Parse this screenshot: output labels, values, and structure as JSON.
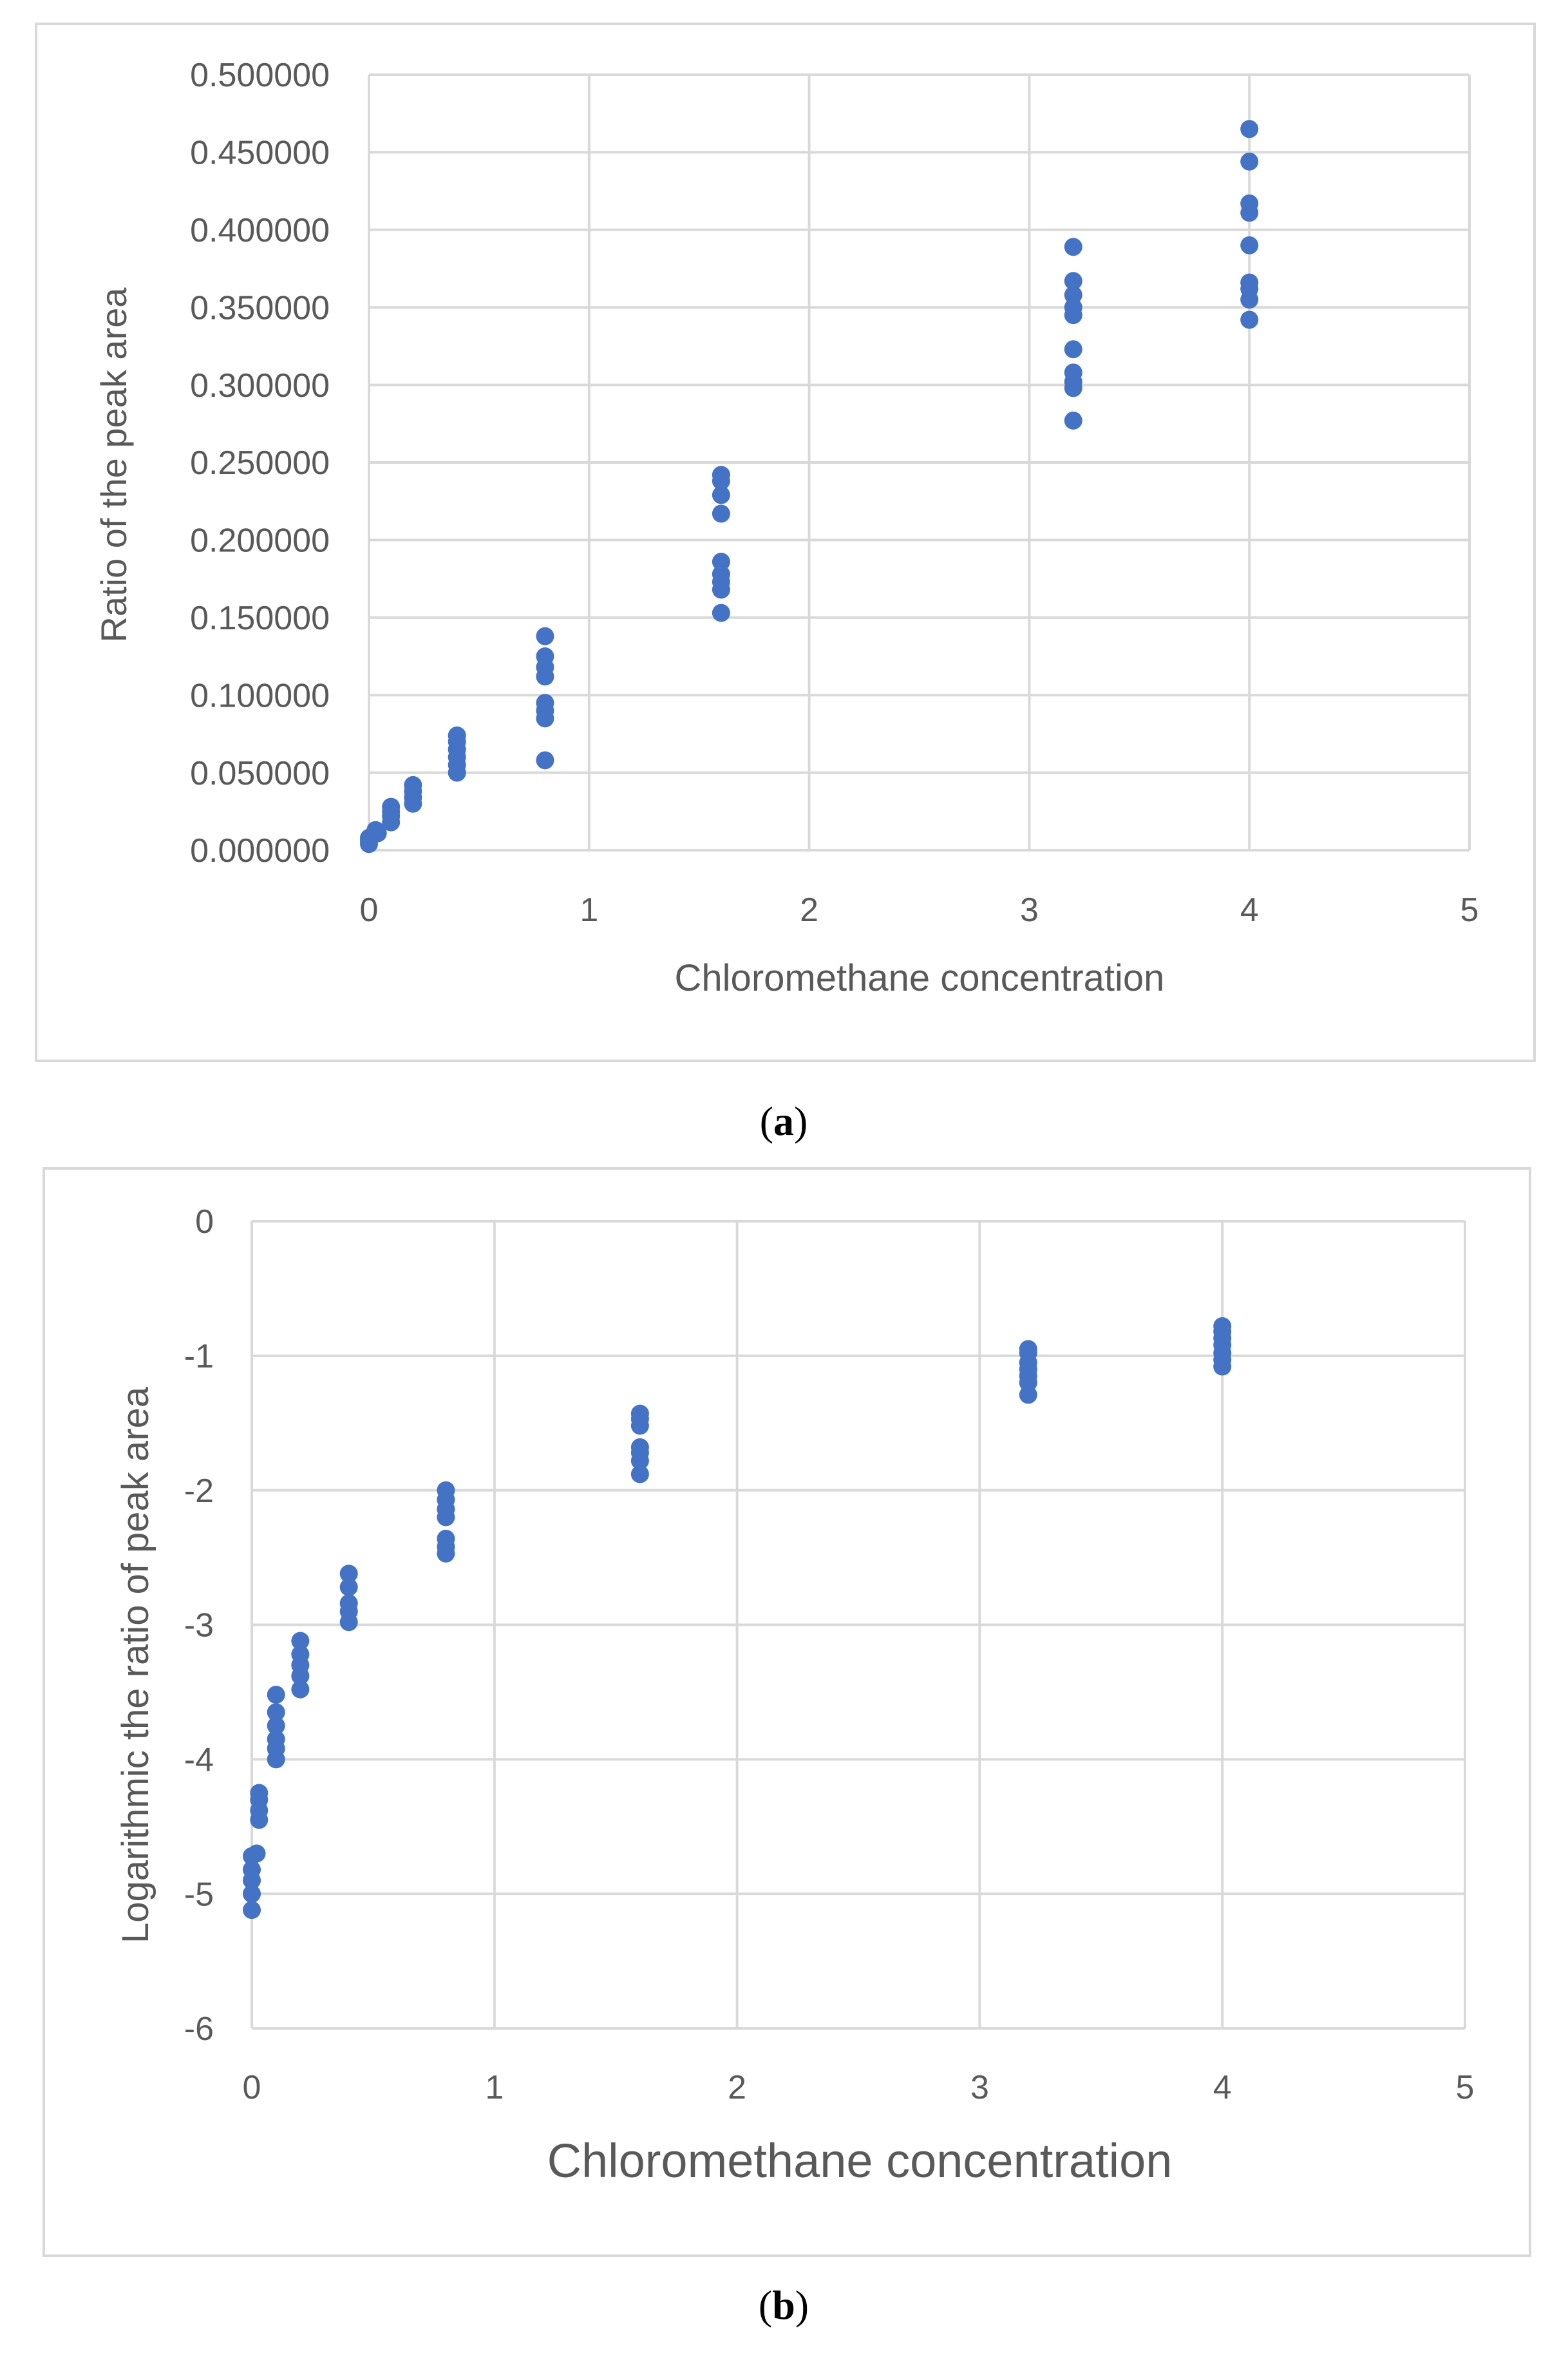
{
  "colors": {
    "point": "#4472C4",
    "grid": "#D9D9D9",
    "frame": "#D9D9D9",
    "text": "#595959"
  },
  "chart_data": [
    {
      "id": "a",
      "caption": "a",
      "type": "scatter",
      "title": "",
      "xlabel": "Chloromethane concentration",
      "ylabel": "Ratio of the peak area",
      "xlim": [
        0,
        5
      ],
      "ylim": [
        0,
        0.5
      ],
      "x_ticks": [
        "0",
        "1",
        "2",
        "3",
        "4",
        "5"
      ],
      "y_ticks": [
        "0.000000",
        "0.050000",
        "0.100000",
        "0.150000",
        "0.200000",
        "0.250000",
        "0.300000",
        "0.350000",
        "0.400000",
        "0.450000",
        "0.500000"
      ],
      "grid": true,
      "series": [
        {
          "name": "Ratio of the peak area",
          "points": [
            [
              0.0,
              0.004
            ],
            [
              0.0,
              0.006
            ],
            [
              0.0,
              0.008
            ],
            [
              0.02,
              0.01
            ],
            [
              0.03,
              0.013
            ],
            [
              0.04,
              0.011
            ],
            [
              0.1,
              0.018
            ],
            [
              0.1,
              0.022
            ],
            [
              0.1,
              0.025
            ],
            [
              0.1,
              0.028
            ],
            [
              0.2,
              0.03
            ],
            [
              0.2,
              0.034
            ],
            [
              0.2,
              0.038
            ],
            [
              0.2,
              0.042
            ],
            [
              0.4,
              0.05
            ],
            [
              0.4,
              0.055
            ],
            [
              0.4,
              0.06
            ],
            [
              0.4,
              0.065
            ],
            [
              0.4,
              0.07
            ],
            [
              0.4,
              0.074
            ],
            [
              0.8,
              0.058
            ],
            [
              0.8,
              0.085
            ],
            [
              0.8,
              0.09
            ],
            [
              0.8,
              0.095
            ],
            [
              0.8,
              0.112
            ],
            [
              0.8,
              0.118
            ],
            [
              0.8,
              0.125
            ],
            [
              0.8,
              0.138
            ],
            [
              1.6,
              0.153
            ],
            [
              1.6,
              0.168
            ],
            [
              1.6,
              0.173
            ],
            [
              1.6,
              0.178
            ],
            [
              1.6,
              0.186
            ],
            [
              1.6,
              0.217
            ],
            [
              1.6,
              0.229
            ],
            [
              1.6,
              0.238
            ],
            [
              1.6,
              0.242
            ],
            [
              3.2,
              0.277
            ],
            [
              3.2,
              0.298
            ],
            [
              3.2,
              0.302
            ],
            [
              3.2,
              0.308
            ],
            [
              3.2,
              0.323
            ],
            [
              3.2,
              0.345
            ],
            [
              3.2,
              0.35
            ],
            [
              3.2,
              0.358
            ],
            [
              3.2,
              0.367
            ],
            [
              3.2,
              0.389
            ],
            [
              4.0,
              0.342
            ],
            [
              4.0,
              0.355
            ],
            [
              4.0,
              0.362
            ],
            [
              4.0,
              0.366
            ],
            [
              4.0,
              0.39
            ],
            [
              4.0,
              0.411
            ],
            [
              4.0,
              0.417
            ],
            [
              4.0,
              0.444
            ],
            [
              4.0,
              0.465
            ]
          ]
        }
      ]
    },
    {
      "id": "b",
      "caption": "b",
      "type": "scatter",
      "title": "",
      "xlabel": "Chloromethane concentration",
      "ylabel": "Logarithmic the ratio of peak area",
      "xlim": [
        0,
        5
      ],
      "ylim": [
        -6,
        0
      ],
      "x_ticks": [
        "0",
        "1",
        "2",
        "3",
        "4",
        "5"
      ],
      "y_ticks": [
        "-6",
        "-5",
        "-4",
        "-3",
        "-2",
        "-1",
        "0"
      ],
      "grid": true,
      "series": [
        {
          "name": "Logarithmic the ratio of peak area",
          "points": [
            [
              0.0,
              -5.12
            ],
            [
              0.0,
              -5.0
            ],
            [
              0.0,
              -4.9
            ],
            [
              0.0,
              -4.82
            ],
            [
              0.0,
              -4.72
            ],
            [
              0.02,
              -4.7
            ],
            [
              0.03,
              -4.45
            ],
            [
              0.03,
              -4.38
            ],
            [
              0.03,
              -4.3
            ],
            [
              0.03,
              -4.25
            ],
            [
              0.1,
              -4.0
            ],
            [
              0.1,
              -3.92
            ],
            [
              0.1,
              -3.85
            ],
            [
              0.1,
              -3.75
            ],
            [
              0.1,
              -3.65
            ],
            [
              0.1,
              -3.52
            ],
            [
              0.2,
              -3.48
            ],
            [
              0.2,
              -3.38
            ],
            [
              0.2,
              -3.3
            ],
            [
              0.2,
              -3.22
            ],
            [
              0.2,
              -3.12
            ],
            [
              0.4,
              -2.98
            ],
            [
              0.4,
              -2.9
            ],
            [
              0.4,
              -2.84
            ],
            [
              0.4,
              -2.72
            ],
            [
              0.4,
              -2.62
            ],
            [
              0.8,
              -2.47
            ],
            [
              0.8,
              -2.42
            ],
            [
              0.8,
              -2.36
            ],
            [
              0.8,
              -2.2
            ],
            [
              0.8,
              -2.14
            ],
            [
              0.8,
              -2.07
            ],
            [
              0.8,
              -2.0
            ],
            [
              1.6,
              -1.88
            ],
            [
              1.6,
              -1.78
            ],
            [
              1.6,
              -1.72
            ],
            [
              1.6,
              -1.68
            ],
            [
              1.6,
              -1.52
            ],
            [
              1.6,
              -1.47
            ],
            [
              1.6,
              -1.43
            ],
            [
              3.2,
              -1.29
            ],
            [
              3.2,
              -1.2
            ],
            [
              3.2,
              -1.15
            ],
            [
              3.2,
              -1.1
            ],
            [
              3.2,
              -1.05
            ],
            [
              3.2,
              -0.98
            ],
            [
              3.2,
              -0.95
            ],
            [
              4.0,
              -1.08
            ],
            [
              4.0,
              -1.03
            ],
            [
              4.0,
              -0.98
            ],
            [
              4.0,
              -0.92
            ],
            [
              4.0,
              -0.87
            ],
            [
              4.0,
              -0.82
            ],
            [
              4.0,
              -0.78
            ]
          ]
        }
      ]
    }
  ]
}
